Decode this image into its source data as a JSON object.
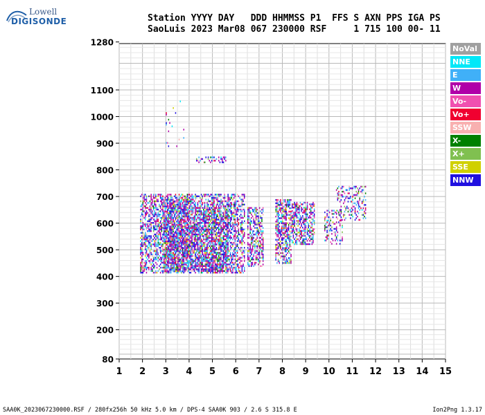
{
  "header": {
    "line1": "Station YYYY DAY   DDD HHMMSS P1  FFS S AXN PPS IGA PS",
    "line2": "SaoLuis 2023 Mar08 067 230000 RSF     1 715 100 00- 11"
  },
  "logo": {
    "top": "Lowell",
    "bottom": "DIGISONDE"
  },
  "footer": {
    "left": "SAA0K_2023067230000.RSF / 280fx256h 50 kHz 5.0 km / DPS-4 SAA0K 903 / 2.6 S 315.8 E",
    "right": "Ion2Png 1.3.17"
  },
  "legend": [
    {
      "label": "NoVal",
      "color": "#a0a0a0"
    },
    {
      "label": "NNE",
      "color": "#00e8f8"
    },
    {
      "label": "E",
      "color": "#40b0f8"
    },
    {
      "label": "W",
      "color": "#b000a8"
    },
    {
      "label": "Vo-",
      "color": "#f050b0"
    },
    {
      "label": "Vo+",
      "color": "#f00030"
    },
    {
      "label": "SSW",
      "color": "#f8b0b0"
    },
    {
      "label": "X-",
      "color": "#008000"
    },
    {
      "label": "X+",
      "color": "#80c050"
    },
    {
      "label": "SSE",
      "color": "#d0d000"
    },
    {
      "label": "NNW",
      "color": "#2010e0"
    }
  ],
  "chart_data": {
    "type": "scatter",
    "xlim": [
      1,
      15
    ],
    "ylim": [
      80,
      1280
    ],
    "x_ticks": [
      "1",
      "2",
      "3",
      "4",
      "5",
      "6",
      "7",
      "8",
      "9",
      "10",
      "11",
      "12",
      "13",
      "14",
      "15"
    ],
    "y_ticks": [
      "80",
      "200",
      "300",
      "400",
      "500",
      "600",
      "700",
      "800",
      "900",
      "1000",
      "1100",
      "1280"
    ],
    "grid": true,
    "clusters": [
      {
        "x": [
          1.9,
          6.4
        ],
        "y": [
          415,
          710
        ],
        "density": 0.55
      },
      {
        "x": [
          2.9,
          4.0
        ],
        "y": [
          420,
          690
        ],
        "density": 0.7
      },
      {
        "x": [
          4.0,
          5.7
        ],
        "y": [
          420,
          660
        ],
        "density": 0.5
      },
      {
        "x": [
          6.5,
          7.2
        ],
        "y": [
          440,
          660
        ],
        "density": 0.55
      },
      {
        "x": [
          7.7,
          8.4
        ],
        "y": [
          450,
          690
        ],
        "density": 0.6
      },
      {
        "x": [
          8.4,
          9.4
        ],
        "y": [
          520,
          680
        ],
        "density": 0.55
      },
      {
        "x": [
          9.8,
          10.6
        ],
        "y": [
          520,
          650
        ],
        "density": 0.3
      },
      {
        "x": [
          10.3,
          11.6
        ],
        "y": [
          610,
          740
        ],
        "density": 0.25
      },
      {
        "x": [
          4.3,
          5.6
        ],
        "y": [
          830,
          850
        ],
        "density": 0.3
      },
      {
        "x": [
          3.0,
          3.8
        ],
        "y": [
          890,
          1060
        ],
        "density": 0.04
      }
    ]
  }
}
